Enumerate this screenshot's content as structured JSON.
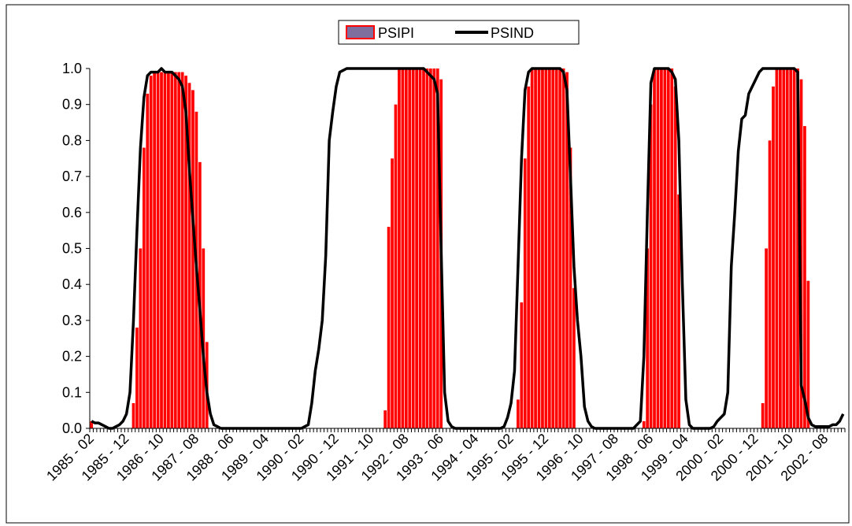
{
  "chart_data": {
    "type": "bar_line",
    "categories": [
      "1985 - 02",
      null,
      null,
      null,
      null,
      null,
      null,
      null,
      null,
      null,
      "1985 - 12",
      null,
      null,
      null,
      null,
      null,
      null,
      null,
      null,
      null,
      "1986 - 10",
      null,
      null,
      null,
      null,
      null,
      null,
      null,
      null,
      null,
      "1987 - 08",
      null,
      null,
      null,
      null,
      null,
      null,
      null,
      null,
      null,
      "1988 - 06",
      null,
      null,
      null,
      null,
      null,
      null,
      null,
      null,
      null,
      "1989 - 04",
      null,
      null,
      null,
      null,
      null,
      null,
      null,
      null,
      null,
      "1990 - 02",
      null,
      null,
      null,
      null,
      null,
      null,
      null,
      null,
      null,
      "1990 - 12",
      null,
      null,
      null,
      null,
      null,
      null,
      null,
      null,
      null,
      "1991 - 10",
      null,
      null,
      null,
      null,
      null,
      null,
      null,
      null,
      null,
      "1992 - 08",
      null,
      null,
      null,
      null,
      null,
      null,
      null,
      null,
      null,
      "1993 - 06",
      null,
      null,
      null,
      null,
      null,
      null,
      null,
      null,
      null,
      "1994 - 04",
      null,
      null,
      null,
      null,
      null,
      null,
      null,
      null,
      null,
      "1995 - 02",
      null,
      null,
      null,
      null,
      null,
      null,
      null,
      null,
      null,
      "1995 - 12",
      null,
      null,
      null,
      null,
      null,
      null,
      null,
      null,
      null,
      "1996 - 10",
      null,
      null,
      null,
      null,
      null,
      null,
      null,
      null,
      null,
      "1997 - 08",
      null,
      null,
      null,
      null,
      null,
      null,
      null,
      null,
      null,
      "1998 - 06",
      null,
      null,
      null,
      null,
      null,
      null,
      null,
      null,
      null,
      "1999 - 04",
      null,
      null,
      null,
      null,
      null,
      null,
      null,
      null,
      null,
      "2000 - 02",
      null,
      null,
      null,
      null,
      null,
      null,
      null,
      null,
      null,
      "2000 - 12",
      null,
      null,
      null,
      null,
      null,
      null,
      null,
      null,
      null,
      "2001 - 10",
      null,
      null,
      null,
      null,
      null,
      null,
      null,
      null,
      null,
      "2002 - 08",
      null,
      null,
      null,
      null,
      null
    ],
    "series": [
      {
        "name": "PSIPI",
        "kind": "bar",
        "color": "#ff0000",
        "values": [
          0.02,
          0,
          0,
          0,
          0,
          0,
          0,
          0,
          0,
          0,
          0,
          0,
          0.07,
          0.28,
          0.5,
          0.78,
          0.93,
          0.98,
          0.99,
          0.99,
          0.99,
          0.99,
          0.99,
          0.99,
          0.99,
          0.99,
          0.99,
          0.98,
          0.96,
          0.94,
          0.88,
          0.74,
          0.5,
          0.24,
          0,
          0,
          0,
          0,
          0,
          0,
          0,
          0,
          0,
          0,
          0,
          0,
          0,
          0,
          0,
          0,
          0,
          0,
          0,
          0,
          0,
          0,
          0,
          0,
          0,
          0,
          0,
          0,
          0,
          0,
          0,
          0,
          0,
          0,
          0,
          0,
          0,
          0,
          0,
          0,
          0,
          0,
          0,
          0,
          0,
          0,
          0,
          0,
          0,
          0,
          0.05,
          0.56,
          0.75,
          0.9,
          1,
          1,
          1,
          1,
          1,
          1,
          1,
          1,
          1,
          1,
          1,
          1,
          0.97,
          0,
          0,
          0,
          0,
          0,
          0,
          0,
          0,
          0,
          0,
          0,
          0,
          0,
          0,
          0,
          0,
          0,
          0,
          0,
          0,
          0,
          0.08,
          0.35,
          0.75,
          0.95,
          1,
          1,
          1,
          1,
          1,
          1,
          1,
          1,
          1,
          1,
          0.99,
          0.78,
          0.39,
          0,
          0,
          0,
          0,
          0,
          0,
          0,
          0,
          0,
          0,
          0,
          0,
          0,
          0,
          0,
          0,
          0,
          0,
          0,
          0.02,
          0.5,
          0.9,
          1,
          1,
          1,
          1,
          1,
          1,
          0.95,
          0.65,
          0,
          0,
          0,
          0,
          0,
          0,
          0,
          0,
          0,
          0,
          0,
          0,
          0,
          0,
          0,
          0,
          0,
          0,
          0,
          0,
          0,
          0,
          0,
          0.07,
          0.5,
          0.8,
          0.95,
          1,
          1,
          1,
          1,
          1,
          1,
          1,
          0.97,
          0.84,
          0.41,
          0,
          0,
          0,
          0,
          0,
          0,
          0,
          0,
          0,
          0
        ]
      },
      {
        "name": "PSIND",
        "kind": "line",
        "color": "#000000",
        "values": [
          0.02,
          0.015,
          0.015,
          0.01,
          0.005,
          0,
          0,
          0.005,
          0.01,
          0.02,
          0.04,
          0.1,
          0.3,
          0.55,
          0.78,
          0.92,
          0.98,
          0.99,
          0.99,
          0.99,
          1,
          0.99,
          0.99,
          0.99,
          0.98,
          0.97,
          0.95,
          0.88,
          0.72,
          0.58,
          0.45,
          0.33,
          0.2,
          0.1,
          0.04,
          0.01,
          0.005,
          0,
          0,
          0,
          0,
          0,
          0,
          0,
          0,
          0,
          0,
          0,
          0,
          0,
          0,
          0,
          0,
          0,
          0,
          0,
          0,
          0,
          0,
          0,
          0,
          0.005,
          0.01,
          0.07,
          0.16,
          0.22,
          0.3,
          0.48,
          0.8,
          0.88,
          0.95,
          0.99,
          0.995,
          1,
          1,
          1,
          1,
          1,
          1,
          1,
          1,
          1,
          1,
          1,
          1,
          1,
          1,
          1,
          1,
          1,
          1,
          1,
          1,
          1,
          1,
          1,
          0.99,
          0.98,
          0.97,
          0.93,
          0.5,
          0.1,
          0.02,
          0.005,
          0,
          0,
          0,
          0,
          0,
          0,
          0,
          0,
          0,
          0,
          0,
          0,
          0,
          0,
          0.005,
          0.03,
          0.07,
          0.16,
          0.45,
          0.75,
          0.94,
          0.99,
          1,
          1,
          1,
          1,
          1,
          1,
          1,
          1,
          1,
          0.99,
          0.94,
          0.7,
          0.45,
          0.3,
          0.2,
          0.06,
          0.02,
          0.005,
          0,
          0,
          0,
          0,
          0,
          0,
          0,
          0,
          0,
          0,
          0,
          0,
          0.01,
          0.02,
          0.2,
          0.6,
          0.96,
          1,
          1,
          1,
          1,
          1,
          0.99,
          0.97,
          0.8,
          0.4,
          0.08,
          0.01,
          0,
          0,
          0,
          0,
          0,
          0,
          0.005,
          0.02,
          0.03,
          0.04,
          0.1,
          0.45,
          0.6,
          0.77,
          0.86,
          0.87,
          0.93,
          0.95,
          0.97,
          0.99,
          1,
          1,
          1,
          1,
          1,
          1,
          1,
          1,
          1,
          1,
          0.99,
          0.12,
          0.08,
          0.03,
          0.01,
          0.005,
          0.005,
          0.005,
          0.005,
          0.005,
          0.01,
          0.01,
          0.02,
          0.04
        ]
      }
    ],
    "ylim": [
      0,
      1
    ],
    "yticks": [
      {
        "value": 0,
        "label": "0.0"
      },
      0.1,
      0.2,
      0.3,
      0.4,
      0.5,
      0.6,
      0.7,
      0.8,
      0.9,
      {
        "value": 1,
        "label": "1.0"
      }
    ],
    "legend": "top"
  }
}
